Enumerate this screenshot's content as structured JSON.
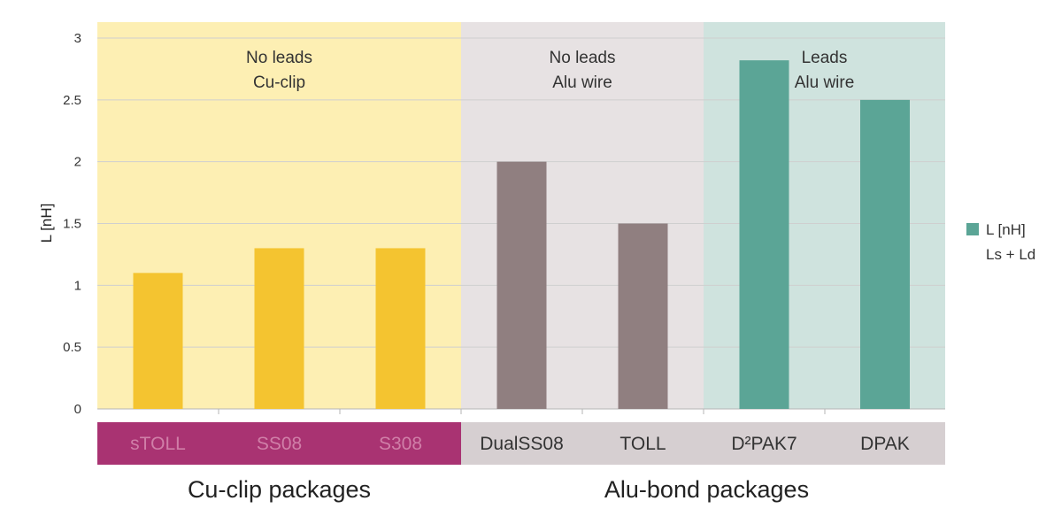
{
  "chart_data": {
    "type": "bar",
    "ylabel": "L [nH]",
    "ylim": [
      0,
      3
    ],
    "yticks": [
      0,
      0.5,
      1,
      1.5,
      2,
      2.5,
      3
    ],
    "ytick_labels": [
      "0",
      "0.5",
      "1",
      "1.5",
      "2",
      "2.5",
      "3"
    ],
    "grid": true,
    "categories": [
      "sTOLL",
      "SS08",
      "S308",
      "DualSS08",
      "TOLL",
      "D²PAK7",
      "DPAK"
    ],
    "series": [
      {
        "name": "L [nH]",
        "values": [
          1.1,
          1.3,
          1.3,
          2.0,
          1.5,
          2.82,
          2.5
        ]
      }
    ],
    "bar_colors": [
      "#f4c430",
      "#f4c430",
      "#f4c430",
      "#907f80",
      "#907f80",
      "#5ba596",
      "#5ba596"
    ],
    "regions": [
      {
        "name": "no-leads-cu-clip",
        "line1": "No leads",
        "line2": "Cu-clip",
        "categories": [
          0,
          1,
          2
        ],
        "color": "#fdefb3"
      },
      {
        "name": "no-leads-alu-wire",
        "line1": "No leads",
        "line2": "Alu wire",
        "categories": [
          3,
          4
        ],
        "color": "#e7e2e3"
      },
      {
        "name": "leads-alu-wire",
        "line1": "Leads",
        "line2": "Alu wire",
        "categories": [
          5,
          6
        ],
        "color": "#cfe3de"
      }
    ],
    "category_band_colors": {
      "cu_clip": "#a93372",
      "alu_bond": "#d6cfd1",
      "cu_clip_text": "#d07fa8",
      "alu_bond_text": "#333333"
    },
    "package_groups": [
      {
        "label": "Cu-clip packages",
        "categories": [
          0,
          1,
          2
        ]
      },
      {
        "label": "Alu-bond packages",
        "categories": [
          3,
          4,
          5,
          6
        ]
      }
    ],
    "legend": {
      "placement": "right",
      "label": "L [nH]",
      "sublabel": "Ls + Ld",
      "color": "#5ba596"
    }
  }
}
